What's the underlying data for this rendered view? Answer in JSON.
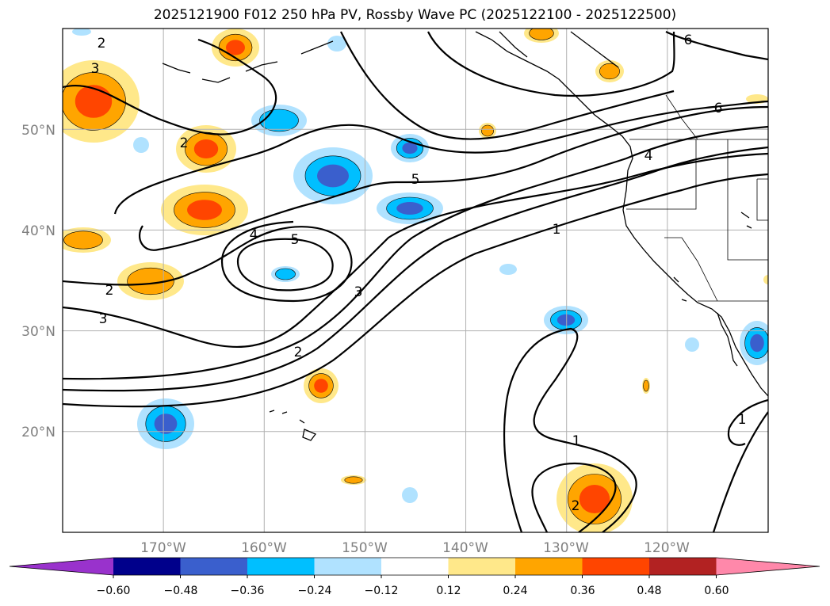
{
  "title": "2025121900 F012 250 hPa PV, Rossby Wave PC (2025122100 - 2025122500)",
  "map": {
    "projection": "plate carree",
    "lon_range": [
      "180°W",
      "110°W"
    ],
    "lat_range": [
      "10°N",
      "60°N"
    ],
    "lat_ticks": [
      "20°N",
      "30°N",
      "40°N",
      "50°N"
    ],
    "lon_ticks": [
      "170°W",
      "160°W",
      "150°W",
      "140°W",
      "130°W",
      "120°W"
    ],
    "grid": true,
    "features": [
      "coastlines",
      "country borders",
      "US state borders"
    ]
  },
  "contours": {
    "field": "250 hPa PV",
    "color": "#000000",
    "labels": [
      "1",
      "1",
      "1",
      "2",
      "2",
      "2",
      "2",
      "2",
      "3",
      "3",
      "3",
      "4",
      "4",
      "5",
      "5",
      "6",
      "6"
    ]
  },
  "shading": {
    "field": "Rossby Wave PC",
    "colorbar": {
      "ticks": [
        "−0.60",
        "−0.48",
        "−0.36",
        "−0.24",
        "−0.12",
        "0.12",
        "0.24",
        "0.36",
        "0.48",
        "0.60"
      ],
      "colors": [
        "#9932cc",
        "#00008b",
        "#3a5fcd",
        "#00bfff",
        "#b0e2ff",
        "#ffffff",
        "#ffe88a",
        "#ffa500",
        "#ff4500",
        "#b22222",
        "#ff88aa"
      ],
      "extend": "both"
    }
  }
}
